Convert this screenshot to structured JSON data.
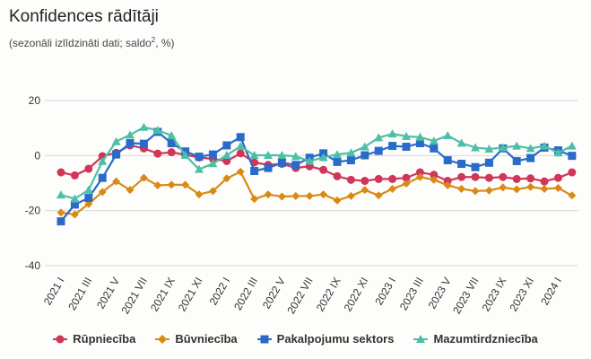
{
  "title": "Konfidences rādītāji",
  "subtitle_pre": "(sezonāli izlīdzināti dati; saldo",
  "subtitle_sup": "2",
  "subtitle_post": ", %)",
  "chart_data": {
    "type": "line",
    "ylim": [
      -40,
      20
    ],
    "yticks": [
      20,
      0,
      -20,
      -40
    ],
    "grid": true,
    "legend_position": "bottom",
    "categories": [
      "2021 I",
      "2021 II",
      "2021 III",
      "2021 IV",
      "2021 V",
      "2021 VI",
      "2021 VII",
      "2021 VIII",
      "2021 IX",
      "2021 X",
      "2021 XI",
      "2021 XII",
      "2022 I",
      "2022 II",
      "2022 III",
      "2022 IV",
      "2022 V",
      "2022 VI",
      "2022 VII",
      "2022 VIII",
      "2022 IX",
      "2022 X",
      "2022 XI",
      "2022 XII",
      "2023 I",
      "2023 II",
      "2023 III",
      "2023 IV",
      "2023 V",
      "2023 VI",
      "2023 VII",
      "2023 VIII",
      "2023 IX",
      "2023 X",
      "2023 XI",
      "2023 XII",
      "2024 I",
      "2024 II"
    ],
    "xtick_labels": [
      "2021 I",
      "2021 III",
      "2021 V",
      "2021 VII",
      "2021 IX",
      "2021 XI",
      "2022 I",
      "2022 III",
      "2022 V",
      "2022 VII",
      "2022 IX",
      "2022 XI",
      "2023 I",
      "2023 III",
      "2023 V",
      "2023 VII",
      "2023 IX",
      "2023 XI",
      "2024 I"
    ],
    "series": [
      {
        "name": "Rūpniecība",
        "color": "#d0355a",
        "marker": "circle",
        "values": [
          -6.1,
          -7.2,
          -4.8,
          -0.2,
          1,
          3.7,
          2.6,
          0.7,
          1.2,
          0.3,
          -0.7,
          -1.2,
          -2,
          0.8,
          -2.5,
          -3.4,
          -3,
          -4.5,
          -3.9,
          -5.2,
          -7.5,
          -8.8,
          -9.2,
          -8.5,
          -8.5,
          -8.1,
          -6.1,
          -7,
          -9.2,
          -7.8,
          -7.8,
          -8.1,
          -7.8,
          -8.5,
          -8.3,
          -9.4,
          -8.1,
          -6.1
        ]
      },
      {
        "name": "Būvniecība",
        "color": "#d98a14",
        "marker": "diamond",
        "values": [
          -20.7,
          -21.4,
          -17.6,
          -13.2,
          -9.4,
          -12.5,
          -8.1,
          -10.8,
          -10.6,
          -10.6,
          -14.1,
          -12.9,
          -8.3,
          -5.9,
          -15.8,
          -14.1,
          -14.9,
          -14.7,
          -14.7,
          -14.1,
          -16.3,
          -14.7,
          -12.5,
          -14.5,
          -12.1,
          -10.2,
          -7.8,
          -8.8,
          -10.8,
          -12.1,
          -12.9,
          -12.7,
          -11.6,
          -12.3,
          -11.4,
          -12.1,
          -11.8,
          -14.5
        ]
      },
      {
        "name": "Pakalpojumu sektors",
        "color": "#2a6bc8",
        "marker": "square",
        "values": [
          -23.9,
          -17.8,
          -15.4,
          -8.1,
          0.4,
          4.5,
          4.3,
          8.6,
          4.5,
          1.5,
          -0.4,
          0.4,
          3.7,
          6.7,
          -5.6,
          -4.5,
          -2.6,
          -3.4,
          -0.8,
          0.8,
          -2.3,
          -1.7,
          0.1,
          1.7,
          3.5,
          3.2,
          4.5,
          2.6,
          -1.7,
          -3,
          -4.2,
          -2.6,
          2.6,
          -2,
          -0.9,
          2.9,
          1.9,
          -0.1
        ]
      },
      {
        "name": "Mazumtirdzniecība",
        "color": "#4dbfa8",
        "marker": "triangle",
        "values": [
          -14.3,
          -15.7,
          -12.5,
          -2.1,
          5.1,
          7.5,
          10.3,
          9.2,
          7.3,
          0.1,
          -5,
          -2.9,
          0.1,
          3.4,
          0.1,
          0.1,
          0.1,
          -0.3,
          -2,
          -0.7,
          0.4,
          1,
          3.2,
          6.5,
          7.9,
          7,
          6.7,
          5.3,
          7.3,
          4.5,
          2.9,
          2.4,
          2.9,
          3.5,
          2.6,
          3.5,
          1,
          3.5
        ]
      }
    ]
  }
}
